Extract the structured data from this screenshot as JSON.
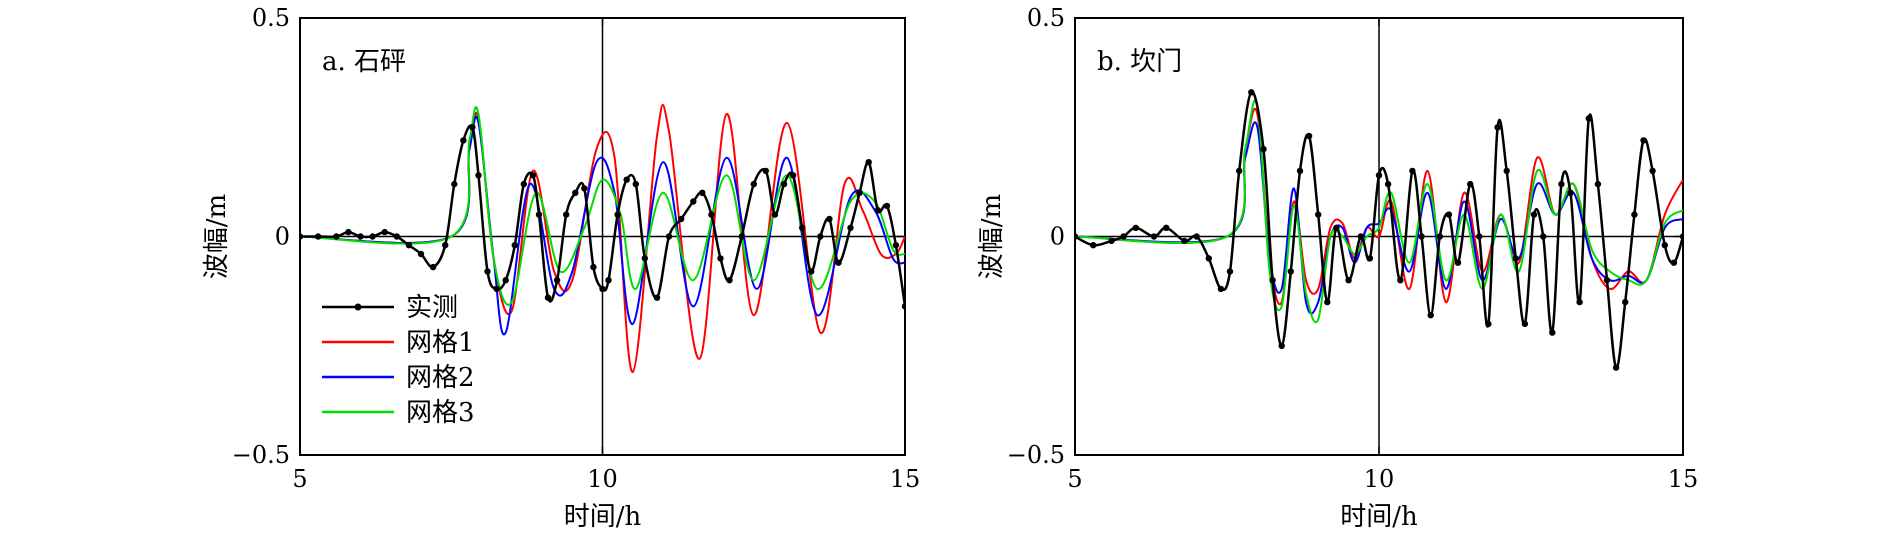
{
  "chart_data": [
    {
      "type": "line",
      "panel_label": "a. 石砰",
      "xlabel": "时间/h",
      "ylabel": "波幅/m",
      "xlim": [
        5,
        15
      ],
      "ylim": [
        -0.5,
        0.5
      ],
      "xticks": [
        "5",
        "10",
        "15"
      ],
      "yticks": [
        "0.5",
        "0",
        "−0.5"
      ],
      "zero_line": true,
      "vertical_line_x": 10,
      "legend": {
        "placement": "bottom-left"
      },
      "series": [
        {
          "name": "实测",
          "color": "#000000",
          "marker": true,
          "x": [
            5.0,
            5.3,
            5.6,
            5.8,
            6.0,
            6.2,
            6.4,
            6.6,
            6.8,
            7.0,
            7.2,
            7.4,
            7.55,
            7.7,
            7.85,
            7.95,
            8.1,
            8.25,
            8.4,
            8.55,
            8.7,
            8.85,
            8.95,
            9.1,
            9.25,
            9.4,
            9.55,
            9.7,
            9.85,
            10.0,
            10.1,
            10.25,
            10.4,
            10.55,
            10.7,
            10.9,
            11.1,
            11.3,
            11.5,
            11.65,
            11.8,
            11.95,
            12.1,
            12.3,
            12.5,
            12.7,
            12.85,
            13.0,
            13.15,
            13.3,
            13.45,
            13.6,
            13.75,
            13.9,
            14.1,
            14.25,
            14.4,
            14.55,
            14.7,
            14.85,
            15.0
          ],
          "y": [
            0.0,
            0.0,
            0.0,
            0.01,
            0.0,
            0.0,
            0.01,
            0.0,
            -0.02,
            -0.04,
            -0.07,
            -0.02,
            0.12,
            0.22,
            0.25,
            0.14,
            -0.08,
            -0.12,
            -0.1,
            -0.02,
            0.12,
            0.14,
            0.05,
            -0.14,
            -0.1,
            0.05,
            0.1,
            0.11,
            -0.07,
            -0.12,
            -0.1,
            0.05,
            0.13,
            0.12,
            -0.05,
            -0.14,
            0.0,
            0.04,
            0.08,
            0.1,
            0.05,
            -0.05,
            -0.1,
            0.0,
            0.12,
            0.15,
            0.05,
            0.12,
            0.14,
            0.02,
            -0.08,
            0.0,
            0.04,
            -0.06,
            0.02,
            0.1,
            0.17,
            0.06,
            0.07,
            -0.02,
            -0.16
          ]
        },
        {
          "name": "网格1",
          "color": "#ff0000",
          "marker": false,
          "x": [
            5.0,
            7.5,
            7.8,
            7.95,
            8.2,
            8.5,
            8.85,
            9.2,
            9.5,
            9.9,
            10.2,
            10.5,
            10.9,
            11.1,
            11.6,
            12.05,
            12.5,
            13.05,
            13.6,
            14.0,
            14.3,
            14.6,
            14.85,
            15.0
          ],
          "y": [
            0.0,
            0.0,
            0.2,
            0.27,
            -0.05,
            -0.17,
            0.15,
            -0.08,
            -0.1,
            0.2,
            0.18,
            -0.31,
            0.23,
            0.24,
            -0.28,
            0.28,
            -0.18,
            0.26,
            -0.22,
            0.12,
            0.06,
            -0.04,
            -0.04,
            0.0
          ]
        },
        {
          "name": "网格2",
          "color": "#0000ff",
          "marker": false,
          "x": [
            5.0,
            7.5,
            7.8,
            7.95,
            8.2,
            8.4,
            8.8,
            9.2,
            9.5,
            9.9,
            10.2,
            10.5,
            11.0,
            11.5,
            12.05,
            12.55,
            13.05,
            13.55,
            14.1,
            14.5,
            14.8,
            15.0
          ],
          "y": [
            0.0,
            0.0,
            0.2,
            0.26,
            -0.05,
            -0.22,
            0.12,
            -0.12,
            -0.08,
            0.17,
            0.1,
            -0.2,
            0.17,
            -0.16,
            0.18,
            -0.12,
            0.18,
            -0.18,
            0.09,
            0.06,
            -0.05,
            -0.06
          ]
        },
        {
          "name": "网格3",
          "color": "#00dd00",
          "marker": false,
          "x": [
            5.0,
            7.5,
            7.8,
            7.95,
            8.2,
            8.5,
            8.9,
            9.3,
            9.7,
            10.0,
            10.3,
            10.55,
            11.0,
            11.5,
            12.05,
            12.5,
            13.05,
            13.55,
            14.1,
            14.5,
            14.8,
            15.0
          ],
          "y": [
            0.0,
            0.0,
            0.22,
            0.28,
            -0.05,
            -0.15,
            0.1,
            -0.08,
            0.02,
            0.13,
            0.05,
            -0.12,
            0.1,
            -0.1,
            0.14,
            -0.1,
            0.14,
            -0.12,
            0.08,
            0.08,
            -0.03,
            -0.04
          ]
        }
      ]
    },
    {
      "type": "line",
      "panel_label": "b. 坎门",
      "xlabel": "时间/h",
      "ylabel": "波幅/m",
      "xlim": [
        5,
        15
      ],
      "ylim": [
        -0.5,
        0.5
      ],
      "xticks": [
        "5",
        "10",
        "15"
      ],
      "yticks": [
        "0.5",
        "0",
        "−0.5"
      ],
      "zero_line": true,
      "vertical_line_x": 10,
      "series": [
        {
          "name": "实测",
          "color": "#000000",
          "marker": true,
          "x": [
            5.0,
            5.3,
            5.6,
            5.8,
            6.0,
            6.3,
            6.5,
            6.8,
            7.0,
            7.2,
            7.4,
            7.55,
            7.7,
            7.9,
            8.1,
            8.25,
            8.4,
            8.55,
            8.7,
            8.85,
            9.0,
            9.15,
            9.3,
            9.5,
            9.7,
            9.85,
            10.0,
            10.15,
            10.35,
            10.55,
            10.7,
            10.85,
            11.0,
            11.15,
            11.3,
            11.5,
            11.65,
            11.8,
            11.95,
            12.1,
            12.25,
            12.4,
            12.55,
            12.7,
            12.85,
            13.0,
            13.15,
            13.3,
            13.45,
            13.6,
            13.75,
            13.9,
            14.05,
            14.2,
            14.35,
            14.5,
            14.7,
            14.85,
            15.0
          ],
          "y": [
            0.0,
            -0.02,
            -0.01,
            0.0,
            0.02,
            0.0,
            0.02,
            -0.01,
            0.0,
            -0.05,
            -0.12,
            -0.08,
            0.15,
            0.33,
            0.2,
            -0.1,
            -0.25,
            -0.08,
            0.15,
            0.23,
            0.05,
            -0.15,
            0.02,
            -0.1,
            0.0,
            -0.05,
            0.14,
            0.12,
            -0.1,
            0.15,
            0.0,
            -0.18,
            0.0,
            0.05,
            -0.06,
            0.12,
            0.0,
            -0.2,
            0.25,
            0.15,
            -0.05,
            -0.2,
            0.05,
            0.0,
            -0.22,
            0.12,
            0.1,
            -0.15,
            0.27,
            0.12,
            -0.1,
            -0.3,
            -0.15,
            0.05,
            0.22,
            0.15,
            -0.02,
            -0.06,
            0.0
          ]
        },
        {
          "name": "网格1",
          "color": "#ff0000",
          "marker": false,
          "x": [
            5.0,
            7.5,
            7.8,
            8.0,
            8.2,
            8.4,
            8.6,
            8.8,
            9.0,
            9.2,
            9.4,
            9.6,
            9.8,
            10.0,
            10.2,
            10.5,
            10.8,
            11.1,
            11.4,
            11.7,
            12.0,
            12.3,
            12.6,
            12.9,
            13.2,
            13.5,
            13.8,
            14.1,
            14.4,
            14.7,
            15.0
          ],
          "y": [
            0.0,
            0.0,
            0.2,
            0.28,
            -0.05,
            -0.15,
            0.08,
            -0.1,
            -0.12,
            0.02,
            0.03,
            -0.05,
            0.02,
            0.0,
            0.08,
            -0.12,
            0.15,
            -0.15,
            0.1,
            -0.08,
            0.05,
            -0.06,
            0.18,
            0.05,
            0.12,
            -0.05,
            -0.12,
            -0.08,
            -0.1,
            0.05,
            0.13
          ]
        },
        {
          "name": "网格2",
          "color": "#0000ff",
          "marker": false,
          "x": [
            5.0,
            7.5,
            7.8,
            8.0,
            8.2,
            8.4,
            8.6,
            8.8,
            9.0,
            9.2,
            9.4,
            9.6,
            9.8,
            10.0,
            10.2,
            10.5,
            10.8,
            11.1,
            11.4,
            11.7,
            12.0,
            12.3,
            12.6,
            12.9,
            13.2,
            13.5,
            13.8,
            14.1,
            14.4,
            14.7,
            15.0
          ],
          "y": [
            0.0,
            0.0,
            0.18,
            0.25,
            -0.05,
            -0.12,
            0.11,
            -0.15,
            -0.15,
            0.0,
            0.02,
            -0.06,
            0.02,
            0.03,
            0.06,
            -0.08,
            0.1,
            -0.12,
            0.08,
            -0.1,
            0.04,
            -0.05,
            0.12,
            0.05,
            0.1,
            -0.05,
            -0.1,
            -0.09,
            -0.1,
            0.02,
            0.04
          ]
        },
        {
          "name": "网格3",
          "color": "#00dd00",
          "marker": false,
          "x": [
            5.0,
            7.5,
            7.8,
            8.0,
            8.2,
            8.4,
            8.6,
            8.8,
            9.0,
            9.2,
            9.4,
            9.6,
            9.8,
            10.0,
            10.2,
            10.5,
            10.8,
            11.1,
            11.4,
            11.7,
            12.0,
            12.3,
            12.6,
            12.9,
            13.2,
            13.5,
            13.8,
            14.1,
            14.4,
            14.7,
            15.0
          ],
          "y": [
            0.0,
            0.0,
            0.2,
            0.3,
            -0.08,
            -0.16,
            0.07,
            -0.13,
            -0.19,
            0.0,
            0.0,
            -0.04,
            0.0,
            0.02,
            0.1,
            -0.06,
            0.12,
            -0.1,
            0.05,
            -0.12,
            0.05,
            -0.08,
            0.15,
            0.05,
            0.12,
            -0.03,
            -0.08,
            -0.1,
            -0.1,
            0.03,
            0.06
          ]
        }
      ]
    }
  ]
}
